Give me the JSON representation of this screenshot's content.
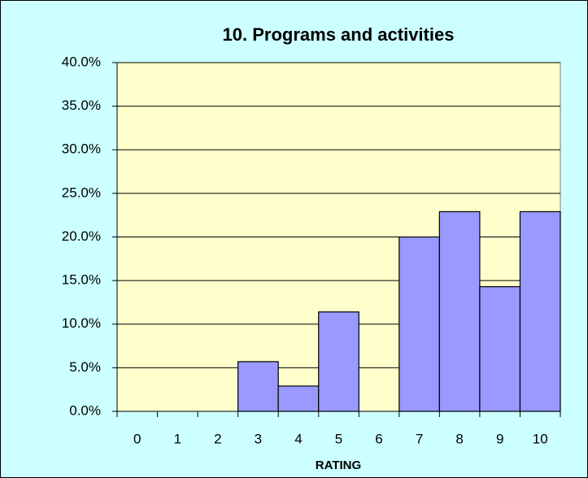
{
  "chart_data": {
    "type": "bar",
    "title": "10. Programs and activities",
    "x_label": "RATING",
    "categories": [
      "0",
      "1",
      "2",
      "3",
      "4",
      "5",
      "6",
      "7",
      "8",
      "9",
      "10"
    ],
    "values": [
      0,
      0,
      0,
      5.7,
      2.9,
      11.4,
      0,
      20.0,
      22.9,
      14.3,
      22.9
    ],
    "color": "#9999ff",
    "ylim": [
      0,
      40
    ],
    "yticks": [
      {
        "value": 0,
        "label": "0.0%"
      },
      {
        "value": 5,
        "label": "5.0%"
      },
      {
        "value": 10,
        "label": "10.0%"
      },
      {
        "value": 15,
        "label": "15.0%"
      },
      {
        "value": 20,
        "label": "20.0%"
      },
      {
        "value": 25,
        "label": "25.0%"
      },
      {
        "value": 30,
        "label": "30.0%"
      },
      {
        "value": 35,
        "label": "35.0%"
      },
      {
        "value": 40,
        "label": "40.0%"
      }
    ],
    "grid": true
  }
}
